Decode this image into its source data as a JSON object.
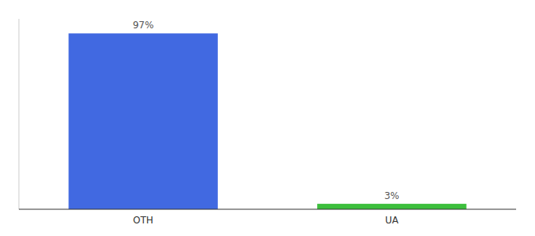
{
  "chart_data": {
    "type": "bar",
    "categories": [
      "OTH",
      "UA"
    ],
    "values": [
      97,
      3
    ],
    "value_labels": [
      "97%",
      "3%"
    ],
    "colors": [
      "#4169E1",
      "#3dbf3d"
    ],
    "ylim": [
      0,
      105
    ],
    "data_labels": true,
    "tick_labels": "x",
    "grid": false
  }
}
